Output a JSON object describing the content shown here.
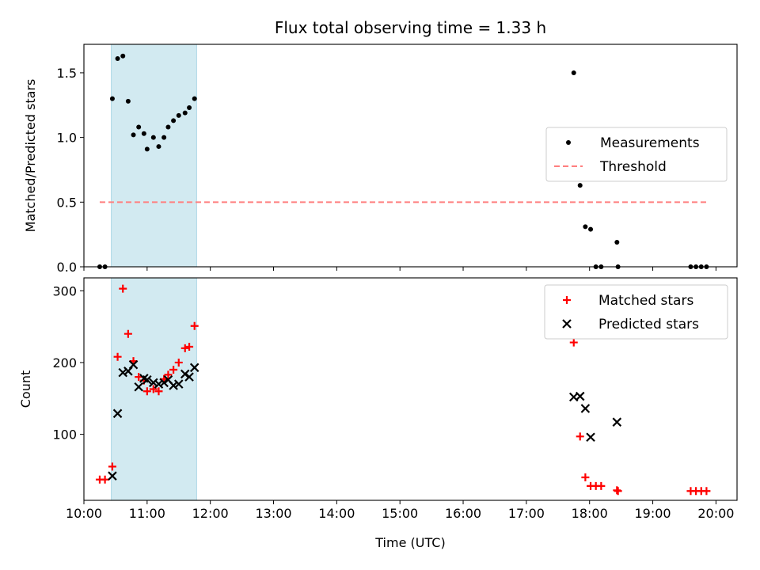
{
  "chart_data": [
    {
      "type": "scatter",
      "title": "Flux total observing time = 1.33 h",
      "ylabel": "Matched/Predicted stars",
      "xlabel": "",
      "xlim": [
        "10:00",
        "20:20"
      ],
      "ylim": [
        0,
        1.72
      ],
      "x_ticks": [
        "10:00",
        "11:00",
        "12:00",
        "13:00",
        "14:00",
        "15:00",
        "16:00",
        "17:00",
        "18:00",
        "19:00",
        "20:00"
      ],
      "y_ticks": [
        "0.0",
        "0.5",
        "1.0",
        "1.5"
      ],
      "show_x_tick_labels": false,
      "shaded_region": {
        "x_start": "10:26",
        "x_end": "11:47",
        "color": "#add8e6"
      },
      "legend_position": "center-right",
      "series": [
        {
          "name": "Measurements",
          "marker": "dot",
          "color": "#000000",
          "points": [
            [
              "10:15",
              0.0
            ],
            [
              "10:20",
              0.0
            ],
            [
              "10:27",
              1.3
            ],
            [
              "10:32",
              1.61
            ],
            [
              "10:37",
              1.63
            ],
            [
              "10:42",
              1.28
            ],
            [
              "10:47",
              1.02
            ],
            [
              "10:52",
              1.08
            ],
            [
              "10:57",
              1.03
            ],
            [
              "11:00",
              0.91
            ],
            [
              "11:06",
              1.0
            ],
            [
              "11:11",
              0.93
            ],
            [
              "11:16",
              1.0
            ],
            [
              "11:20",
              1.08
            ],
            [
              "11:25",
              1.13
            ],
            [
              "11:30",
              1.17
            ],
            [
              "11:36",
              1.19
            ],
            [
              "11:40",
              1.23
            ],
            [
              "11:45",
              1.3
            ],
            [
              "17:45",
              1.5
            ],
            [
              "17:51",
              0.63
            ],
            [
              "17:56",
              0.31
            ],
            [
              "18:01",
              0.29
            ],
            [
              "18:06",
              0.0
            ],
            [
              "18:11",
              0.0
            ],
            [
              "18:26",
              0.19
            ],
            [
              "18:27",
              0.0
            ],
            [
              "19:36",
              0.0
            ],
            [
              "19:41",
              0.0
            ],
            [
              "19:46",
              0.0
            ],
            [
              "19:51",
              0.0
            ]
          ]
        },
        {
          "name": "Threshold",
          "marker": "dashed-line",
          "color": "#ff7f7f",
          "points": [
            [
              "10:15",
              0.5
            ],
            [
              "19:51",
              0.5
            ]
          ]
        }
      ]
    },
    {
      "type": "scatter",
      "title": "",
      "xlabel": "Time (UTC)",
      "ylabel": "Count",
      "xlim": [
        "10:00",
        "20:20"
      ],
      "ylim": [
        8,
        318
      ],
      "x_ticks": [
        "10:00",
        "11:00",
        "12:00",
        "13:00",
        "14:00",
        "15:00",
        "16:00",
        "17:00",
        "18:00",
        "19:00",
        "20:00"
      ],
      "y_ticks": [
        "100",
        "200",
        "300"
      ],
      "show_x_tick_labels": true,
      "shaded_region": {
        "x_start": "10:26",
        "x_end": "11:47",
        "color": "#add8e6"
      },
      "legend_position": "top-right",
      "series": [
        {
          "name": "Matched stars",
          "marker": "plus",
          "color": "#ff0000",
          "points": [
            [
              "10:15",
              37
            ],
            [
              "10:20",
              37
            ],
            [
              "10:27",
              55
            ],
            [
              "10:32",
              208
            ],
            [
              "10:37",
              303
            ],
            [
              "10:42",
              240
            ],
            [
              "10:47",
              202
            ],
            [
              "10:52",
              180
            ],
            [
              "10:57",
              175
            ],
            [
              "11:00",
              160
            ],
            [
              "11:06",
              163
            ],
            [
              "11:11",
              160
            ],
            [
              "11:16",
              177
            ],
            [
              "11:20",
              183
            ],
            [
              "11:25",
              190
            ],
            [
              "11:30",
              200
            ],
            [
              "11:36",
              220
            ],
            [
              "11:40",
              222
            ],
            [
              "11:45",
              251
            ],
            [
              "17:45",
              228
            ],
            [
              "17:51",
              97
            ],
            [
              "17:56",
              40
            ],
            [
              "18:01",
              28
            ],
            [
              "18:06",
              28
            ],
            [
              "18:11",
              28
            ],
            [
              "18:26",
              22
            ],
            [
              "18:27",
              21
            ],
            [
              "19:36",
              21
            ],
            [
              "19:41",
              21
            ],
            [
              "19:46",
              21
            ],
            [
              "19:51",
              21
            ]
          ]
        },
        {
          "name": "Predicted stars",
          "marker": "x",
          "color": "#000000",
          "points": [
            [
              "10:27",
              42
            ],
            [
              "10:32",
              129
            ],
            [
              "10:37",
              186
            ],
            [
              "10:42",
              188
            ],
            [
              "10:47",
              197
            ],
            [
              "10:52",
              166
            ],
            [
              "10:57",
              178
            ],
            [
              "11:00",
              176
            ],
            [
              "11:06",
              172
            ],
            [
              "11:11",
              170
            ],
            [
              "11:16",
              172
            ],
            [
              "11:20",
              176
            ],
            [
              "11:25",
              168
            ],
            [
              "11:30",
              170
            ],
            [
              "11:36",
              184
            ],
            [
              "11:40",
              180
            ],
            [
              "11:45",
              193
            ],
            [
              "17:45",
              152
            ],
            [
              "17:51",
              153
            ],
            [
              "17:56",
              136
            ],
            [
              "18:01",
              96
            ],
            [
              "18:26",
              117
            ]
          ]
        }
      ]
    }
  ]
}
